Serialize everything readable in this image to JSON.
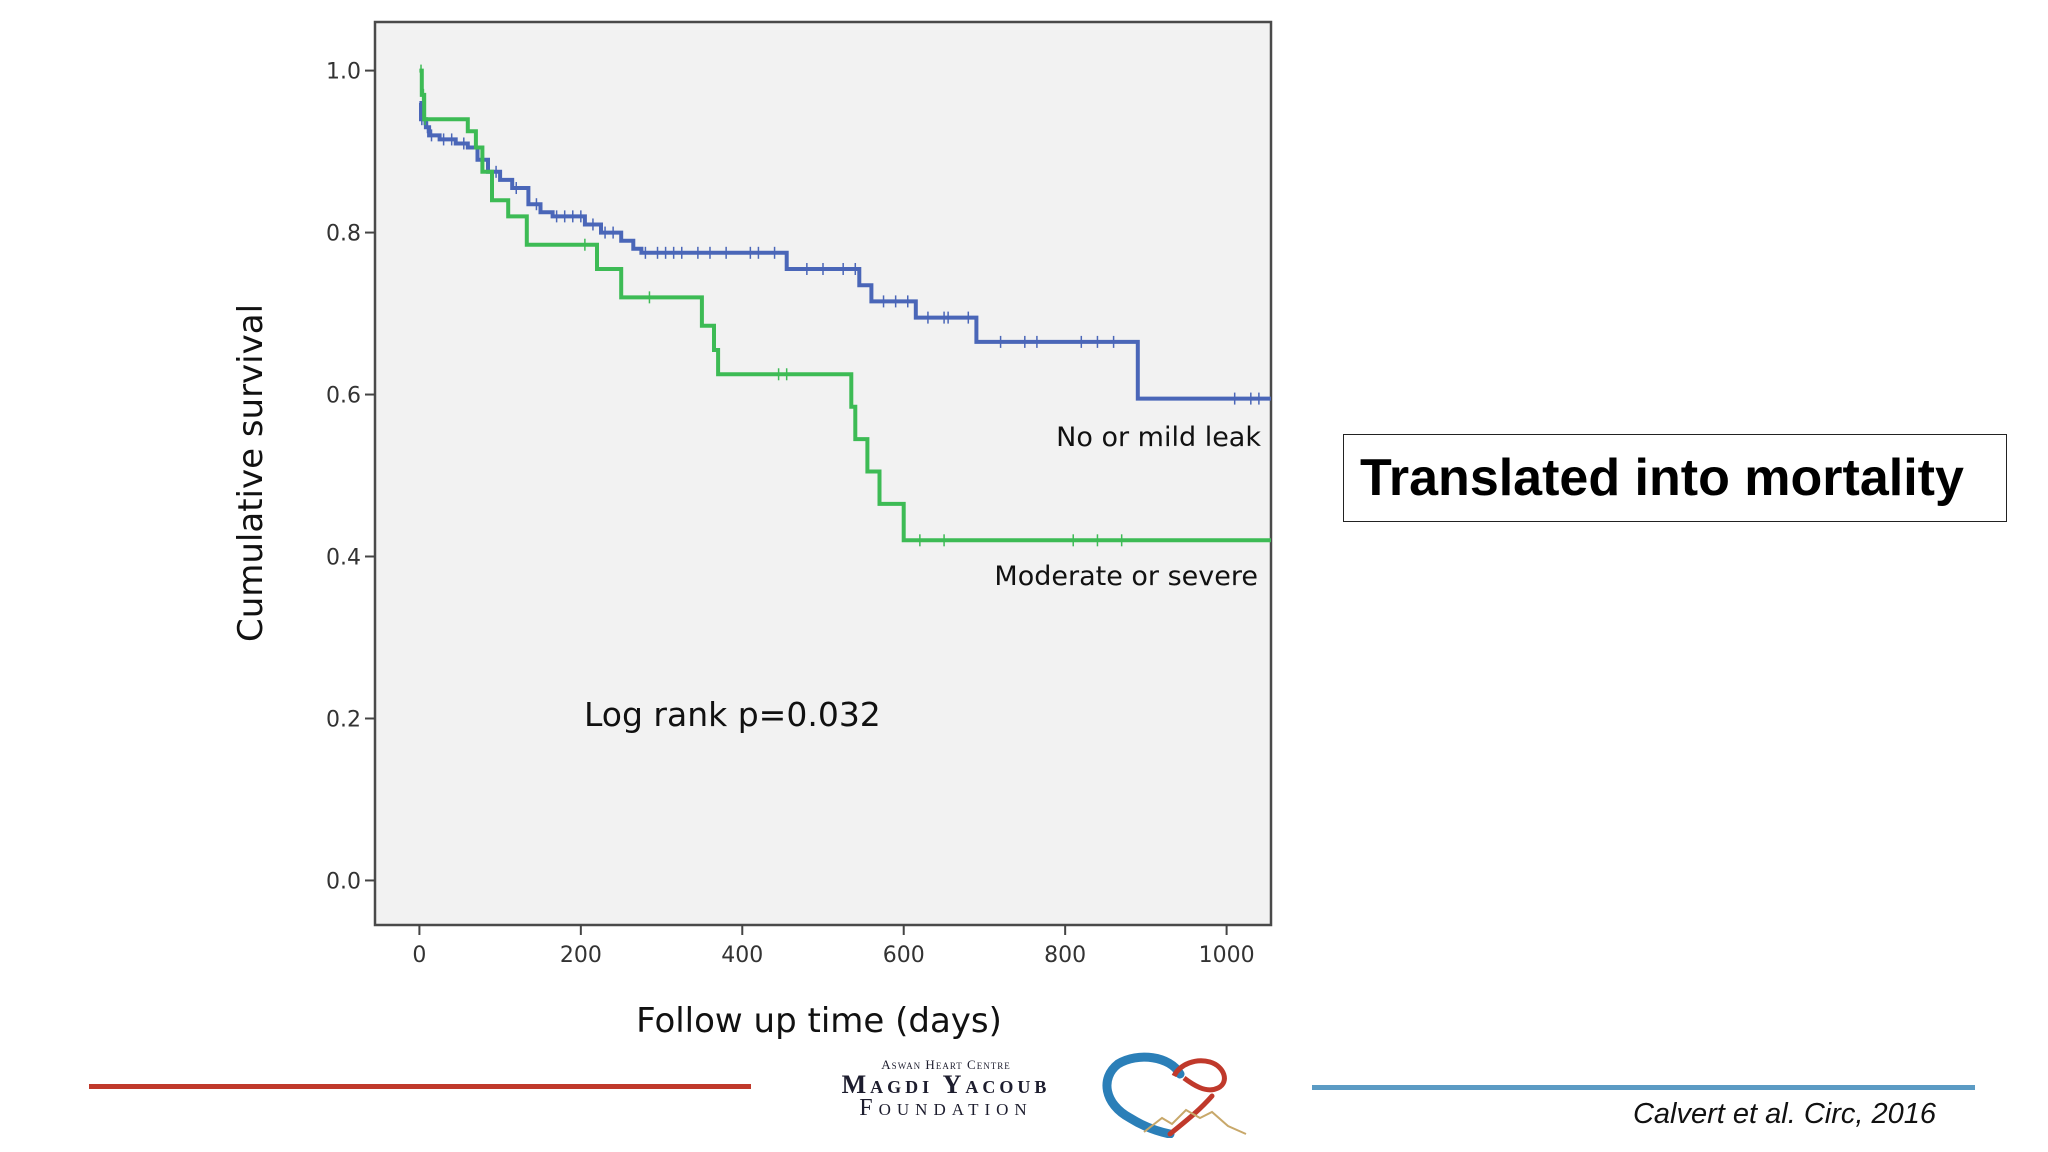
{
  "slide": {
    "title": "Translated into mortality",
    "citation": "Calvert et al. Circ, 2016",
    "colors": {
      "rule_left": "#c0392b",
      "rule_right": "#5b9bc4",
      "plot_bg": "#f2f2f2"
    }
  },
  "logo": {
    "line1": "Aswan Heart Centre",
    "line2": "Magdi Yacoub",
    "line3": "Foundation"
  },
  "chart_data": {
    "type": "line",
    "subtype": "kaplan-meier",
    "xlabel": "Follow up time (days)",
    "ylabel": "Cumulative survival",
    "xlim": [
      -55,
      1055
    ],
    "ylim": [
      -0.055,
      1.06
    ],
    "xticks": [
      0,
      200,
      400,
      600,
      800,
      1000
    ],
    "xtick_labels": [
      "0",
      "200",
      "400",
      "600",
      "800",
      "1000"
    ],
    "yticks": [
      0.0,
      0.2,
      0.4,
      0.6,
      0.8,
      1.0
    ],
    "ytick_labels": [
      "0.0",
      "0.2",
      "0.4",
      "0.6",
      "0.8",
      "1.0"
    ],
    "annotation": "Log rank p=0.032",
    "series": [
      {
        "name": "No or mild leak",
        "color": "#4a66b8",
        "steps": [
          [
            0,
            0.96
          ],
          [
            2,
            0.94
          ],
          [
            8,
            0.93
          ],
          [
            12,
            0.92
          ],
          [
            25,
            0.915
          ],
          [
            45,
            0.91
          ],
          [
            60,
            0.905
          ],
          [
            72,
            0.89
          ],
          [
            85,
            0.875
          ],
          [
            100,
            0.865
          ],
          [
            115,
            0.855
          ],
          [
            135,
            0.835
          ],
          [
            150,
            0.825
          ],
          [
            165,
            0.82
          ],
          [
            205,
            0.81
          ],
          [
            225,
            0.8
          ],
          [
            250,
            0.79
          ],
          [
            265,
            0.78
          ],
          [
            275,
            0.775
          ],
          [
            455,
            0.755
          ],
          [
            545,
            0.735
          ],
          [
            560,
            0.715
          ],
          [
            615,
            0.695
          ],
          [
            690,
            0.665
          ],
          [
            890,
            0.595
          ],
          [
            1055,
            0.595
          ]
        ],
        "censors": [
          3,
          6,
          10,
          15,
          30,
          40,
          55,
          95,
          120,
          145,
          170,
          180,
          190,
          200,
          215,
          230,
          240,
          280,
          295,
          305,
          315,
          325,
          345,
          360,
          380,
          410,
          420,
          440,
          480,
          500,
          525,
          540,
          575,
          590,
          605,
          630,
          650,
          655,
          680,
          720,
          750,
          765,
          820,
          840,
          860,
          1010,
          1030,
          1040
        ]
      },
      {
        "name": "Moderate or severe",
        "color": "#3dbb55",
        "steps": [
          [
            0,
            1.0
          ],
          [
            3,
            0.97
          ],
          [
            6,
            0.94
          ],
          [
            60,
            0.925
          ],
          [
            70,
            0.905
          ],
          [
            78,
            0.875
          ],
          [
            90,
            0.84
          ],
          [
            110,
            0.82
          ],
          [
            133,
            0.785
          ],
          [
            220,
            0.755
          ],
          [
            250,
            0.72
          ],
          [
            350,
            0.685
          ],
          [
            365,
            0.655
          ],
          [
            370,
            0.625
          ],
          [
            535,
            0.585
          ],
          [
            540,
            0.545
          ],
          [
            555,
            0.505
          ],
          [
            570,
            0.465
          ],
          [
            600,
            0.42
          ],
          [
            1055,
            0.42
          ]
        ],
        "censors": [
          2,
          4,
          5,
          7,
          205,
          285,
          445,
          455,
          620,
          650,
          810,
          840,
          870
        ]
      }
    ],
    "series_labels": [
      "No or mild leak",
      "Moderate or severe"
    ]
  }
}
